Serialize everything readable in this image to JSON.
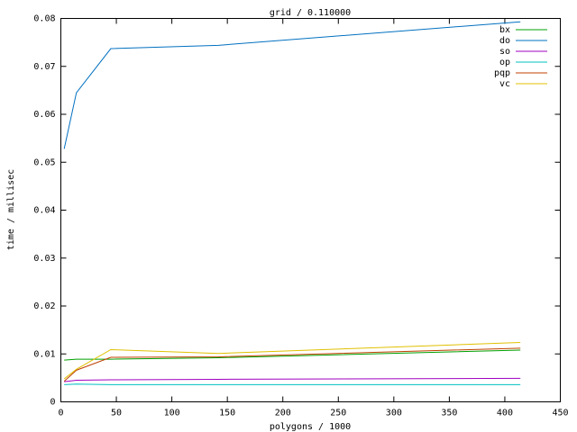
{
  "chart_data": {
    "type": "line",
    "title": "grid / 0.110000",
    "x_label": "polygons / 1000",
    "y_label": "time / millisec",
    "x": [
      3,
      14,
      45,
      142,
      414
    ],
    "series": [
      {
        "name": "bx",
        "color": "#00a000",
        "values": [
          0.0087,
          0.0089,
          0.0089,
          0.0092,
          0.0108
        ]
      },
      {
        "name": "do",
        "color": "#0070c0",
        "values": [
          0.0528,
          0.0645,
          0.0737,
          0.0744,
          0.0793
        ]
      },
      {
        "name": "so",
        "color": "#a000c0",
        "values": [
          0.0042,
          0.0045,
          0.0046,
          0.0047,
          0.0049
        ]
      },
      {
        "name": "op",
        "color": "#00c0c0",
        "values": [
          0.0036,
          0.0037,
          0.0036,
          0.0036,
          0.0036
        ]
      },
      {
        "name": "pqp",
        "color": "#c04000",
        "values": [
          0.0043,
          0.0066,
          0.0093,
          0.0094,
          0.0112
        ]
      },
      {
        "name": "vc",
        "color": "#e0c000",
        "values": [
          0.0048,
          0.0068,
          0.0109,
          0.0101,
          0.0124
        ]
      }
    ],
    "xlim": [
      0,
      450
    ],
    "xticks": [
      0,
      50,
      100,
      150,
      200,
      250,
      300,
      350,
      400,
      450
    ],
    "ylim": [
      0,
      0.08
    ],
    "yticks": [
      0,
      0.01,
      0.02,
      0.03,
      0.04,
      0.05,
      0.06,
      0.07,
      0.08
    ],
    "legend": "top-right",
    "grid": false
  }
}
